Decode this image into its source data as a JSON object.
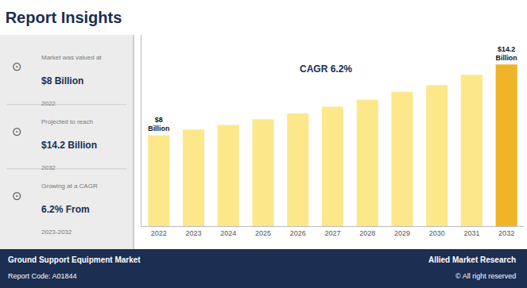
{
  "chart_data": {
    "type": "bar",
    "title": "Report Insights",
    "categories": [
      "2022",
      "2023",
      "2024",
      "2025",
      "2026",
      "2027",
      "2028",
      "2029",
      "2030",
      "2031",
      "2032"
    ],
    "values": [
      8.0,
      8.5,
      8.9,
      9.4,
      9.9,
      10.5,
      11.1,
      11.8,
      12.4,
      13.3,
      14.2
    ],
    "colors": [
      "#FCE88A",
      "#FCE88A",
      "#FCE88A",
      "#FCE88A",
      "#FCE88A",
      "#FCE88A",
      "#FCE88A",
      "#FCE88A",
      "#FCE88A",
      "#FCE88A",
      "#F0B429"
    ],
    "data_labels": true,
    "value_labels": [
      "$8\nBillion",
      null,
      null,
      null,
      null,
      null,
      null,
      null,
      null,
      null,
      "$14.2\nBillion"
    ],
    "ylim": [
      0,
      16.8
    ],
    "yticks": [],
    "tick_labels": "x",
    "grid": false,
    "cagr_text": "CAGR 6.2%",
    "panel_blocks": [
      {
        "icon": "⊙",
        "line1": "Market was valued at",
        "line2": "$8 Billion",
        "line3": "2022"
      },
      {
        "icon": "⊙",
        "line1": "Projected to reach",
        "line2": "$14.2 Billion",
        "line3": "2032"
      },
      {
        "icon": "⊙",
        "line1": "Growing at a CAGR",
        "line2": "6.2% From",
        "line3": "2023-2032"
      }
    ],
    "footer": {
      "left1": "Ground Support Equipment Market",
      "left2": "Report Code: A01844",
      "right1": "Allied Market Research",
      "right2": "© All right reserved"
    }
  }
}
